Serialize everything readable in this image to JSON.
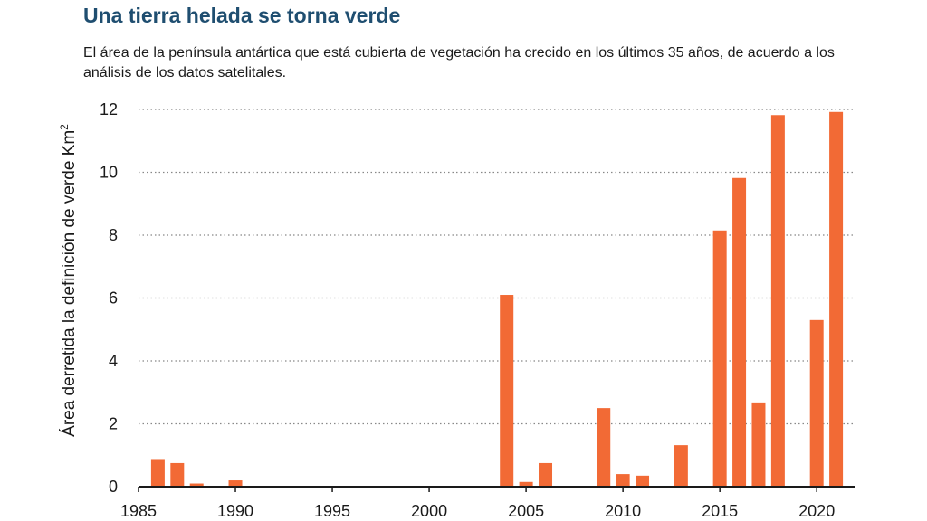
{
  "title": "Una tierra helada se torna verde",
  "subtitle": "El área de la península antártica que está cubierta de vegetación ha crecido en los últimos 35 años, de acuerdo a  los análisis de los datos satelitales.",
  "colors": {
    "bar": "#f26a35",
    "title": "#1f4e70",
    "grid": "#888888",
    "axis": "#1a1a1a"
  },
  "chart_data": {
    "type": "bar",
    "title": "Una tierra helada se torna verde",
    "subtitle": "El área de la península antártica que está cubierta de vegetación ha crecido en los últimos 35 años, de acuerdo a  los análisis de los datos satelitales.",
    "xlabel": "",
    "ylabel": "Área derretida la definición de verde Km",
    "ylabel_superscript": "2",
    "xlim": [
      1985,
      2022
    ],
    "ylim": [
      0,
      12
    ],
    "x_ticks": [
      "1985",
      "1990",
      "1995",
      "2000",
      "2005",
      "2010",
      "2015",
      "2020"
    ],
    "y_ticks": [
      "0",
      "2",
      "4",
      "6",
      "8",
      "10",
      "12"
    ],
    "grid": "horizontal dotted",
    "x": [
      1986,
      1987,
      1988,
      1990,
      2004,
      2005,
      2006,
      2009,
      2010,
      2011,
      2013,
      2015,
      2016,
      2017,
      2018,
      2020,
      2021
    ],
    "values": [
      0.85,
      0.75,
      0.1,
      0.2,
      6.1,
      0.15,
      0.75,
      2.5,
      0.4,
      0.35,
      1.32,
      8.15,
      9.82,
      2.68,
      11.82,
      5.3,
      11.92
    ]
  }
}
